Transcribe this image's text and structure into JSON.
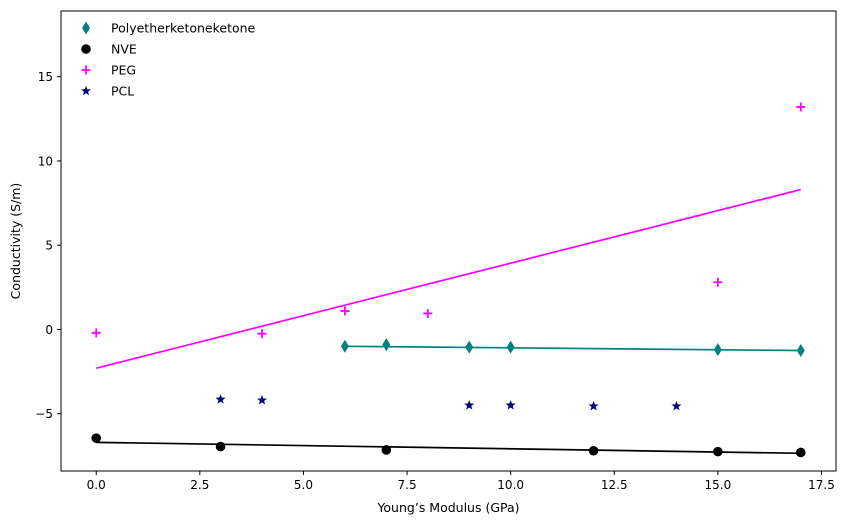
{
  "chart_data": {
    "type": "scatter",
    "title": "",
    "xlabel": "Young’s Modulus (GPa)",
    "ylabel": "Conductivity (S/m)",
    "xlim": [
      -0.85,
      17.85
    ],
    "ylim": [
      -8.4,
      18.9
    ],
    "xticks": [
      0.0,
      2.5,
      5.0,
      7.5,
      10.0,
      12.5,
      15.0,
      17.5
    ],
    "xtick_labels": [
      "0.0",
      "2.5",
      "5.0",
      "7.5",
      "10.0",
      "12.5",
      "15.0",
      "17.5"
    ],
    "yticks": [
      -5,
      0,
      5,
      10,
      15
    ],
    "ytick_labels": [
      "−5",
      "0",
      "5",
      "10",
      "15"
    ],
    "grid": false,
    "legend_position": "top-left",
    "series": [
      {
        "name": "Polyetherketoneketone",
        "marker": "diamond",
        "color": "#008080",
        "x": [
          6,
          7,
          9,
          10,
          15,
          17
        ],
        "y": [
          -1.0,
          -0.9,
          -1.05,
          -1.05,
          -1.2,
          -1.25
        ],
        "fit": {
          "x": [
            6,
            17
          ],
          "y": [
            -1.0,
            -1.25
          ]
        }
      },
      {
        "name": "NVE",
        "marker": "circle",
        "color": "#000000",
        "x": [
          0,
          3,
          7,
          12,
          15,
          17
        ],
        "y": [
          -6.45,
          -6.95,
          -7.15,
          -7.2,
          -7.25,
          -7.3
        ],
        "fit": {
          "x": [
            0,
            17
          ],
          "y": [
            -6.7,
            -7.35
          ]
        }
      },
      {
        "name": "PEG",
        "marker": "plus",
        "color": "#ff00ff",
        "x": [
          0,
          4,
          6,
          8,
          15,
          17
        ],
        "y": [
          -0.2,
          -0.25,
          1.1,
          0.95,
          2.8,
          13.2
        ],
        "fit": {
          "x": [
            0,
            17
          ],
          "y": [
            -2.3,
            8.3
          ]
        }
      },
      {
        "name": "PCL",
        "marker": "star",
        "color": "#000080",
        "x": [
          3,
          4,
          9,
          10,
          12,
          14
        ],
        "y": [
          -4.15,
          -4.2,
          -4.5,
          -4.5,
          -4.55,
          -4.55
        ]
      }
    ]
  }
}
